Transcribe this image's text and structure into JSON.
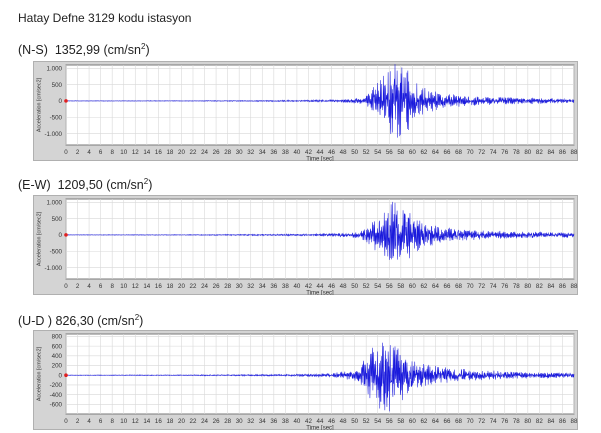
{
  "title": "Hatay Defne 3129 kodu istasyon",
  "colors": {
    "panel_bg": "#d4d4d4",
    "plot_bg": "#ffffff",
    "grid": "#d8d8d8",
    "trace": "#1a1adc",
    "event_marker": "#e02020"
  },
  "chart_data": [
    {
      "type": "line",
      "component": "(N-S)",
      "peak": "1352,99",
      "unit_open": "(cm/sn",
      "unit_sup": "2",
      "unit_close": ")",
      "xlabel": "Time [sec]",
      "ylabel": "Acceleration [cm/sec2]",
      "xlim": [
        0,
        88
      ],
      "ylim": [
        -1350,
        1100
      ],
      "xticks": [
        0,
        2,
        4,
        6,
        8,
        10,
        12,
        14,
        16,
        18,
        20,
        22,
        24,
        26,
        28,
        30,
        32,
        34,
        36,
        38,
        40,
        42,
        44,
        46,
        48,
        50,
        52,
        54,
        56,
        58,
        60,
        62,
        64,
        66,
        68,
        70,
        72,
        74,
        76,
        78,
        80,
        82,
        84,
        86,
        88
      ],
      "yticks": [
        {
          "v": 1000,
          "label": "1.000"
        },
        {
          "v": 500,
          "label": "500"
        },
        {
          "v": 0,
          "label": "0"
        },
        {
          "v": -500,
          "label": "-500"
        },
        {
          "v": -1000,
          "label": "-1.000"
        }
      ],
      "envelope": [
        [
          0,
          8
        ],
        [
          20,
          10
        ],
        [
          30,
          15
        ],
        [
          40,
          22
        ],
        [
          46,
          40
        ],
        [
          50,
          80
        ],
        [
          52,
          160
        ],
        [
          53,
          420
        ],
        [
          54,
          620
        ],
        [
          55,
          880
        ],
        [
          56,
          1060
        ],
        [
          57,
          1250
        ],
        [
          57.6,
          1352
        ],
        [
          58,
          1180
        ],
        [
          59,
          980
        ],
        [
          60,
          760
        ],
        [
          61,
          560
        ],
        [
          62,
          420
        ],
        [
          64,
          300
        ],
        [
          66,
          230
        ],
        [
          70,
          160
        ],
        [
          75,
          120
        ],
        [
          80,
          100
        ],
        [
          85,
          80
        ],
        [
          88,
          60
        ]
      ],
      "event_marker": {
        "t": 0,
        "a": 0
      }
    },
    {
      "type": "line",
      "component": "(E-W)",
      "peak": "1209,50",
      "unit_open": "(cm/sn",
      "unit_sup": "2",
      "unit_close": ")",
      "xlabel": "Time [sec]",
      "ylabel": "Acceleration [cm/sec2]",
      "xlim": [
        0,
        88
      ],
      "ylim": [
        -1350,
        1100
      ],
      "xticks": [
        0,
        2,
        4,
        6,
        8,
        10,
        12,
        14,
        16,
        18,
        20,
        22,
        24,
        26,
        28,
        30,
        32,
        34,
        36,
        38,
        40,
        42,
        44,
        46,
        48,
        50,
        52,
        54,
        56,
        58,
        60,
        62,
        64,
        66,
        68,
        70,
        72,
        74,
        76,
        78,
        80,
        82,
        84,
        86,
        88
      ],
      "yticks": [
        {
          "v": 1000,
          "label": "1.000"
        },
        {
          "v": 500,
          "label": "500"
        },
        {
          "v": 0,
          "label": "0"
        },
        {
          "v": -500,
          "label": "-500"
        },
        {
          "v": -1000,
          "label": "-1.000"
        }
      ],
      "envelope": [
        [
          0,
          8
        ],
        [
          20,
          12
        ],
        [
          30,
          20
        ],
        [
          40,
          30
        ],
        [
          46,
          50
        ],
        [
          50,
          90
        ],
        [
          52,
          220
        ],
        [
          53,
          420
        ],
        [
          54,
          560
        ],
        [
          55,
          720
        ],
        [
          56,
          940
        ],
        [
          57,
          1120
        ],
        [
          57.6,
          1209
        ],
        [
          58,
          1100
        ],
        [
          59,
          880
        ],
        [
          60,
          680
        ],
        [
          61,
          520
        ],
        [
          62,
          400
        ],
        [
          64,
          290
        ],
        [
          66,
          230
        ],
        [
          70,
          170
        ],
        [
          75,
          130
        ],
        [
          80,
          110
        ],
        [
          85,
          90
        ],
        [
          88,
          70
        ]
      ],
      "event_marker": {
        "t": 0,
        "a": 0
      }
    },
    {
      "type": "line",
      "component": "(U-D )",
      "peak": "826,30",
      "unit_open": "(cm/sn",
      "unit_sup": "2",
      "unit_close": ")",
      "xlabel": "Time [sec]",
      "ylabel": "Acceleration [cm/sec2]",
      "xlim": [
        0,
        88
      ],
      "ylim": [
        -800,
        850
      ],
      "xticks": [
        0,
        2,
        4,
        6,
        8,
        10,
        12,
        14,
        16,
        18,
        20,
        22,
        24,
        26,
        28,
        30,
        32,
        34,
        36,
        38,
        40,
        42,
        44,
        46,
        48,
        50,
        52,
        54,
        56,
        58,
        60,
        62,
        64,
        66,
        68,
        70,
        72,
        74,
        76,
        78,
        80,
        82,
        84,
        86,
        88
      ],
      "yticks": [
        {
          "v": 800,
          "label": "800"
        },
        {
          "v": 600,
          "label": "600"
        },
        {
          "v": 400,
          "label": "400"
        },
        {
          "v": 200,
          "label": "200"
        },
        {
          "v": 0,
          "label": "0"
        },
        {
          "v": -200,
          "label": "-200"
        },
        {
          "v": -400,
          "label": "-400"
        },
        {
          "v": -600,
          "label": "-600"
        }
      ],
      "envelope": [
        [
          0,
          6
        ],
        [
          20,
          10
        ],
        [
          30,
          15
        ],
        [
          40,
          25
        ],
        [
          46,
          45
        ],
        [
          50,
          110
        ],
        [
          51,
          230
        ],
        [
          52,
          420
        ],
        [
          53,
          560
        ],
        [
          54,
          700
        ],
        [
          55,
          826
        ],
        [
          56,
          780
        ],
        [
          57,
          700
        ],
        [
          58,
          560
        ],
        [
          59,
          450
        ],
        [
          60,
          360
        ],
        [
          61,
          300
        ],
        [
          62,
          250
        ],
        [
          64,
          200
        ],
        [
          66,
          160
        ],
        [
          70,
          120
        ],
        [
          75,
          90
        ],
        [
          80,
          70
        ],
        [
          85,
          60
        ],
        [
          88,
          50
        ]
      ],
      "event_marker": {
        "t": 0,
        "a": 0
      }
    }
  ]
}
